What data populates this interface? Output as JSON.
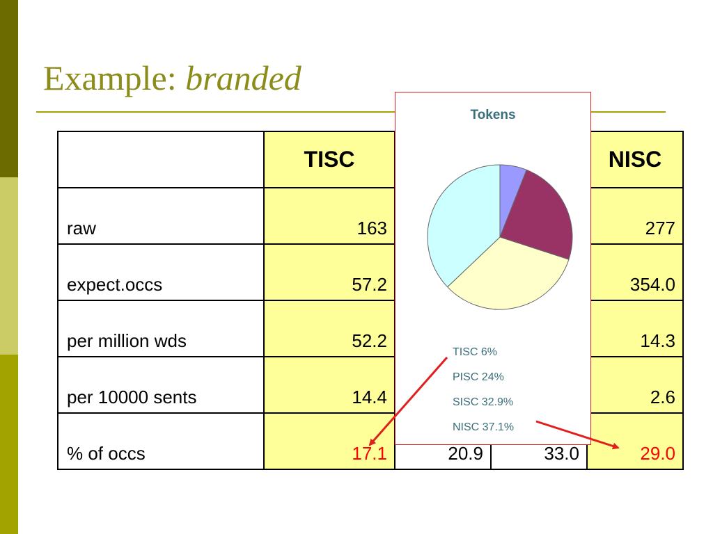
{
  "slide": {
    "title_plain": "Example: ",
    "title_italic": "branded"
  },
  "table": {
    "headers": [
      "",
      "TISC",
      "",
      "",
      "NISC"
    ],
    "rows": [
      {
        "label": "raw",
        "values": [
          "163",
          "",
          "",
          "277"
        ]
      },
      {
        "label": "expect.occs",
        "values": [
          "57.2",
          "",
          "",
          "354.0"
        ]
      },
      {
        "label": "per million wds",
        "values": [
          "52.2",
          "",
          "",
          "14.3"
        ]
      },
      {
        "label": "per 10000 sents",
        "values": [
          "14.4",
          "",
          "",
          "2.6"
        ]
      },
      {
        "label": "% of occs",
        "values": [
          "17.1",
          "20.9",
          "33.0",
          "29.0"
        ]
      }
    ]
  },
  "chart_data": {
    "type": "pie",
    "title": "Tokens",
    "categories": [
      "TISC",
      "PISC",
      "SISC",
      "NISC"
    ],
    "values": [
      6,
      24,
      32.9,
      37.1
    ],
    "legend_labels": [
      "TISC 6%",
      "PISC 24%",
      "SISC 32.9%",
      "NISC 37.1%"
    ],
    "colors": [
      "#9999ff",
      "#993366",
      "#ffffcc",
      "#ccffff"
    ],
    "legend_placement": "bottom"
  },
  "colors": {
    "sidebar_dark": "#6b6b00",
    "sidebar_light": "#cccc66",
    "sidebar_mid": "#a3a300",
    "title": "#8c8c1a",
    "cell_highlight": "#ffff99",
    "emphasis_red": "#ff0000",
    "arrow": "#e0201e"
  }
}
